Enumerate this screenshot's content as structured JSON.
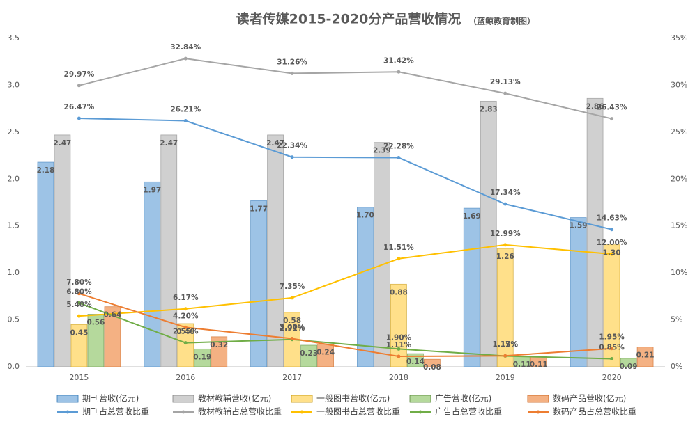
{
  "chart_data": {
    "type": "bar",
    "title": "读者传媒2015-2020分产品营收情况",
    "subtitle": "（蓝鲸教育制图）",
    "categories": [
      "2015",
      "2016",
      "2017",
      "2018",
      "2019",
      "2020"
    ],
    "ylim": [
      0,
      3.5
    ],
    "yticks": [
      {
        "value": 0,
        "label": "0.0"
      },
      {
        "value": 0.5,
        "label": "0.5"
      },
      {
        "value": 1,
        "label": "1.0"
      },
      {
        "value": 1.5,
        "label": "1.5"
      },
      {
        "value": 2,
        "label": "2.0"
      },
      {
        "value": 2.5,
        "label": "2.5"
      },
      {
        "value": 3,
        "label": "3.0"
      },
      {
        "value": 3.5,
        "label": "3.5"
      }
    ],
    "y2lim": [
      0,
      35
    ],
    "y2ticks": [
      {
        "value": 0,
        "label": "0%"
      },
      {
        "value": 5,
        "label": "5%"
      },
      {
        "value": 10,
        "label": "10%"
      },
      {
        "value": 15,
        "label": "15%"
      },
      {
        "value": 20,
        "label": "20%"
      },
      {
        "value": 25,
        "label": "25%"
      },
      {
        "value": 30,
        "label": "30%"
      },
      {
        "value": 35,
        "label": "35%"
      }
    ],
    "series": [
      {
        "name": "期刊营收(亿元)",
        "type": "bar",
        "color": "#9dc3e6",
        "label_color": "#2e75b6",
        "values": [
          2.18,
          1.97,
          1.77,
          1.7,
          1.69,
          1.59
        ],
        "value_labels": [
          "2.18",
          "1.97",
          "1.77",
          "1.70",
          "1.69",
          "1.59"
        ]
      },
      {
        "name": "教材教辅营收(亿元)",
        "type": "bar",
        "color": "#d0d0d0",
        "label_color": "#7f7f7f",
        "values": [
          2.47,
          2.47,
          2.47,
          2.39,
          2.83,
          2.86
        ],
        "value_labels": [
          "2.47",
          "2.47",
          "2.47",
          "2.39",
          "2.83",
          "2.86"
        ]
      },
      {
        "name": "一般图书营收(亿元)",
        "type": "bar",
        "color": "#ffe08a",
        "label_color": "#bf9000",
        "values": [
          0.45,
          0.46,
          0.58,
          0.88,
          1.26,
          1.3
        ],
        "value_labels": [
          "0.45",
          "0.46",
          "0.58",
          "0.88",
          "1.26",
          "1.30"
        ]
      },
      {
        "name": "广告营收(亿元)",
        "type": "bar",
        "color": "#b5d99c",
        "label_color": "#548235",
        "values": [
          0.56,
          0.19,
          0.23,
          0.14,
          0.11,
          0.09
        ],
        "value_labels": [
          "0.56",
          "0.19",
          "0.23",
          "0.14",
          "0.11",
          "0.09"
        ]
      },
      {
        "name": "数码产品营收(亿元)",
        "type": "bar",
        "color": "#f4b183",
        "label_color": "#c55a11",
        "values": [
          0.64,
          0.32,
          0.24,
          0.08,
          0.11,
          0.21
        ],
        "value_labels": [
          "0.64",
          "0.32",
          "0.24",
          "0.08",
          "0.11",
          "0.21"
        ]
      },
      {
        "name": "期刊占总营收比重",
        "type": "line",
        "axis": "y2",
        "color": "#5b9bd5",
        "label_color": "#2e75b6",
        "values": [
          26.47,
          26.21,
          22.34,
          22.28,
          17.34,
          14.63
        ],
        "value_labels": [
          "26.47%",
          "26.21%",
          "22.34%",
          "22.28%",
          "17.34%",
          "14.63%"
        ]
      },
      {
        "name": "教材教辅占总营收比重",
        "type": "line",
        "axis": "y2",
        "color": "#a5a5a5",
        "label_color": "#7f7f7f",
        "values": [
          29.97,
          32.84,
          31.26,
          31.42,
          29.13,
          26.43
        ],
        "value_labels": [
          "29.97%",
          "32.84%",
          "31.26%",
          "31.42%",
          "29.13%",
          "26.43%"
        ]
      },
      {
        "name": "一般图书占总营收比重",
        "type": "line",
        "axis": "y2",
        "color": "#ffc000",
        "label_color": "#bf9000",
        "values": [
          5.4,
          6.17,
          7.35,
          11.51,
          12.99,
          12.0
        ],
        "value_labels": [
          "5.40%",
          "6.17%",
          "7.35%",
          "11.51%",
          "12.99%",
          "12.00%"
        ]
      },
      {
        "name": "广告占总营收比重",
        "type": "line",
        "axis": "y2",
        "color": "#70ad47",
        "label_color": "#548235",
        "values": [
          6.8,
          2.55,
          2.91,
          1.9,
          1.15,
          0.85
        ],
        "value_labels": [
          "6.80%",
          "2.55%",
          "2.91%",
          "1.90%",
          "1.15%",
          "0.85%"
        ]
      },
      {
        "name": "数码产品占总营收比重",
        "type": "line",
        "axis": "y2",
        "color": "#ed7d31",
        "label_color": "#c55a11",
        "values": [
          7.8,
          4.2,
          3.0,
          1.11,
          1.17,
          1.95
        ],
        "value_labels": [
          "7.80%",
          "4.20%",
          "3.00%",
          "1.11%",
          "1.17%",
          "1.95%"
        ]
      }
    ]
  }
}
